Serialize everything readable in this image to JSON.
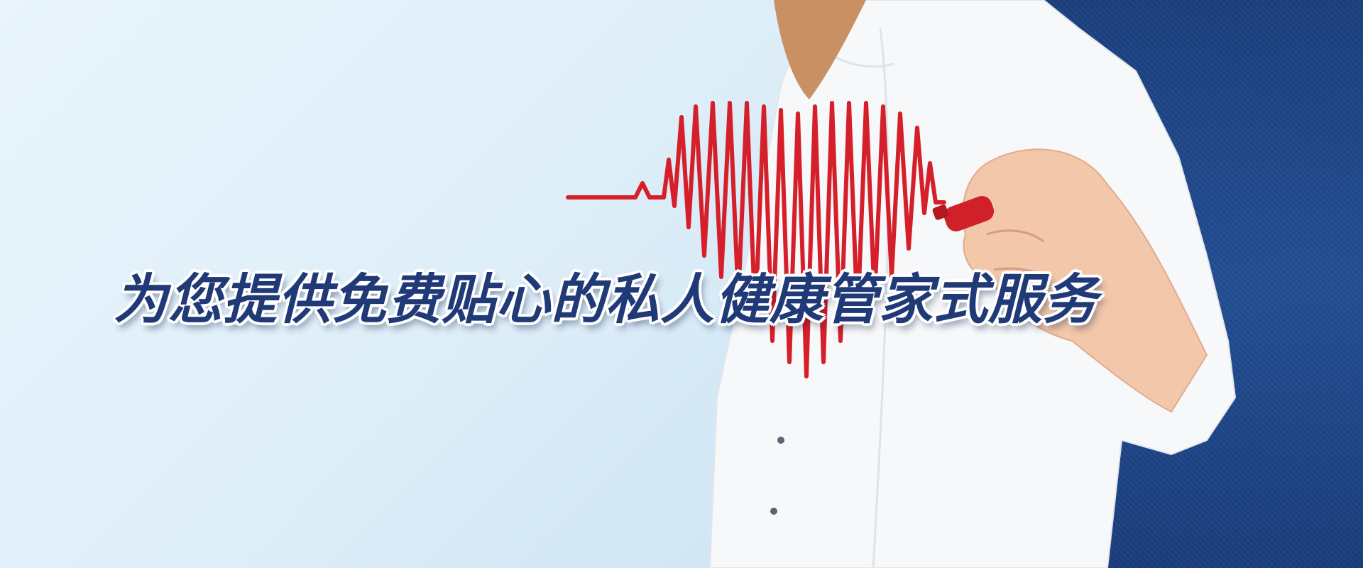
{
  "banner": {
    "headline": "为您提供免费贴心的私人健康管家式服务"
  },
  "colors": {
    "background_light": "#e3f0f9",
    "panel_blue": "#1f4688",
    "heartbeat_red": "#d51f2a",
    "headline_text": "#203a78"
  },
  "icons": {
    "heartbeat": "heart-ecg-line",
    "marker": "red-marker-pen"
  }
}
